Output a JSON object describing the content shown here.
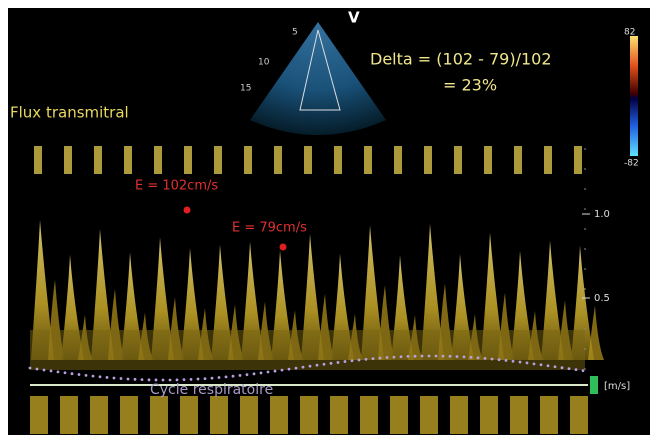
{
  "sector": {
    "marker": "V",
    "depth_labels": [
      "5",
      "10",
      "15"
    ]
  },
  "annotation": {
    "delta_line1": "Delta = (102 - 79)/102",
    "delta_line2": "= 23%"
  },
  "label": "Flux transmitral",
  "color_bar": {
    "top": "82",
    "bottom": "-82"
  },
  "doppler": {
    "peak_labels": [
      "E = 102cm/s",
      "E = 79cm/s"
    ],
    "scale_labels": [
      "1.0",
      "0.5"
    ],
    "unit": "[m/s]",
    "baseline_label": "Cycle respiratoire"
  }
}
